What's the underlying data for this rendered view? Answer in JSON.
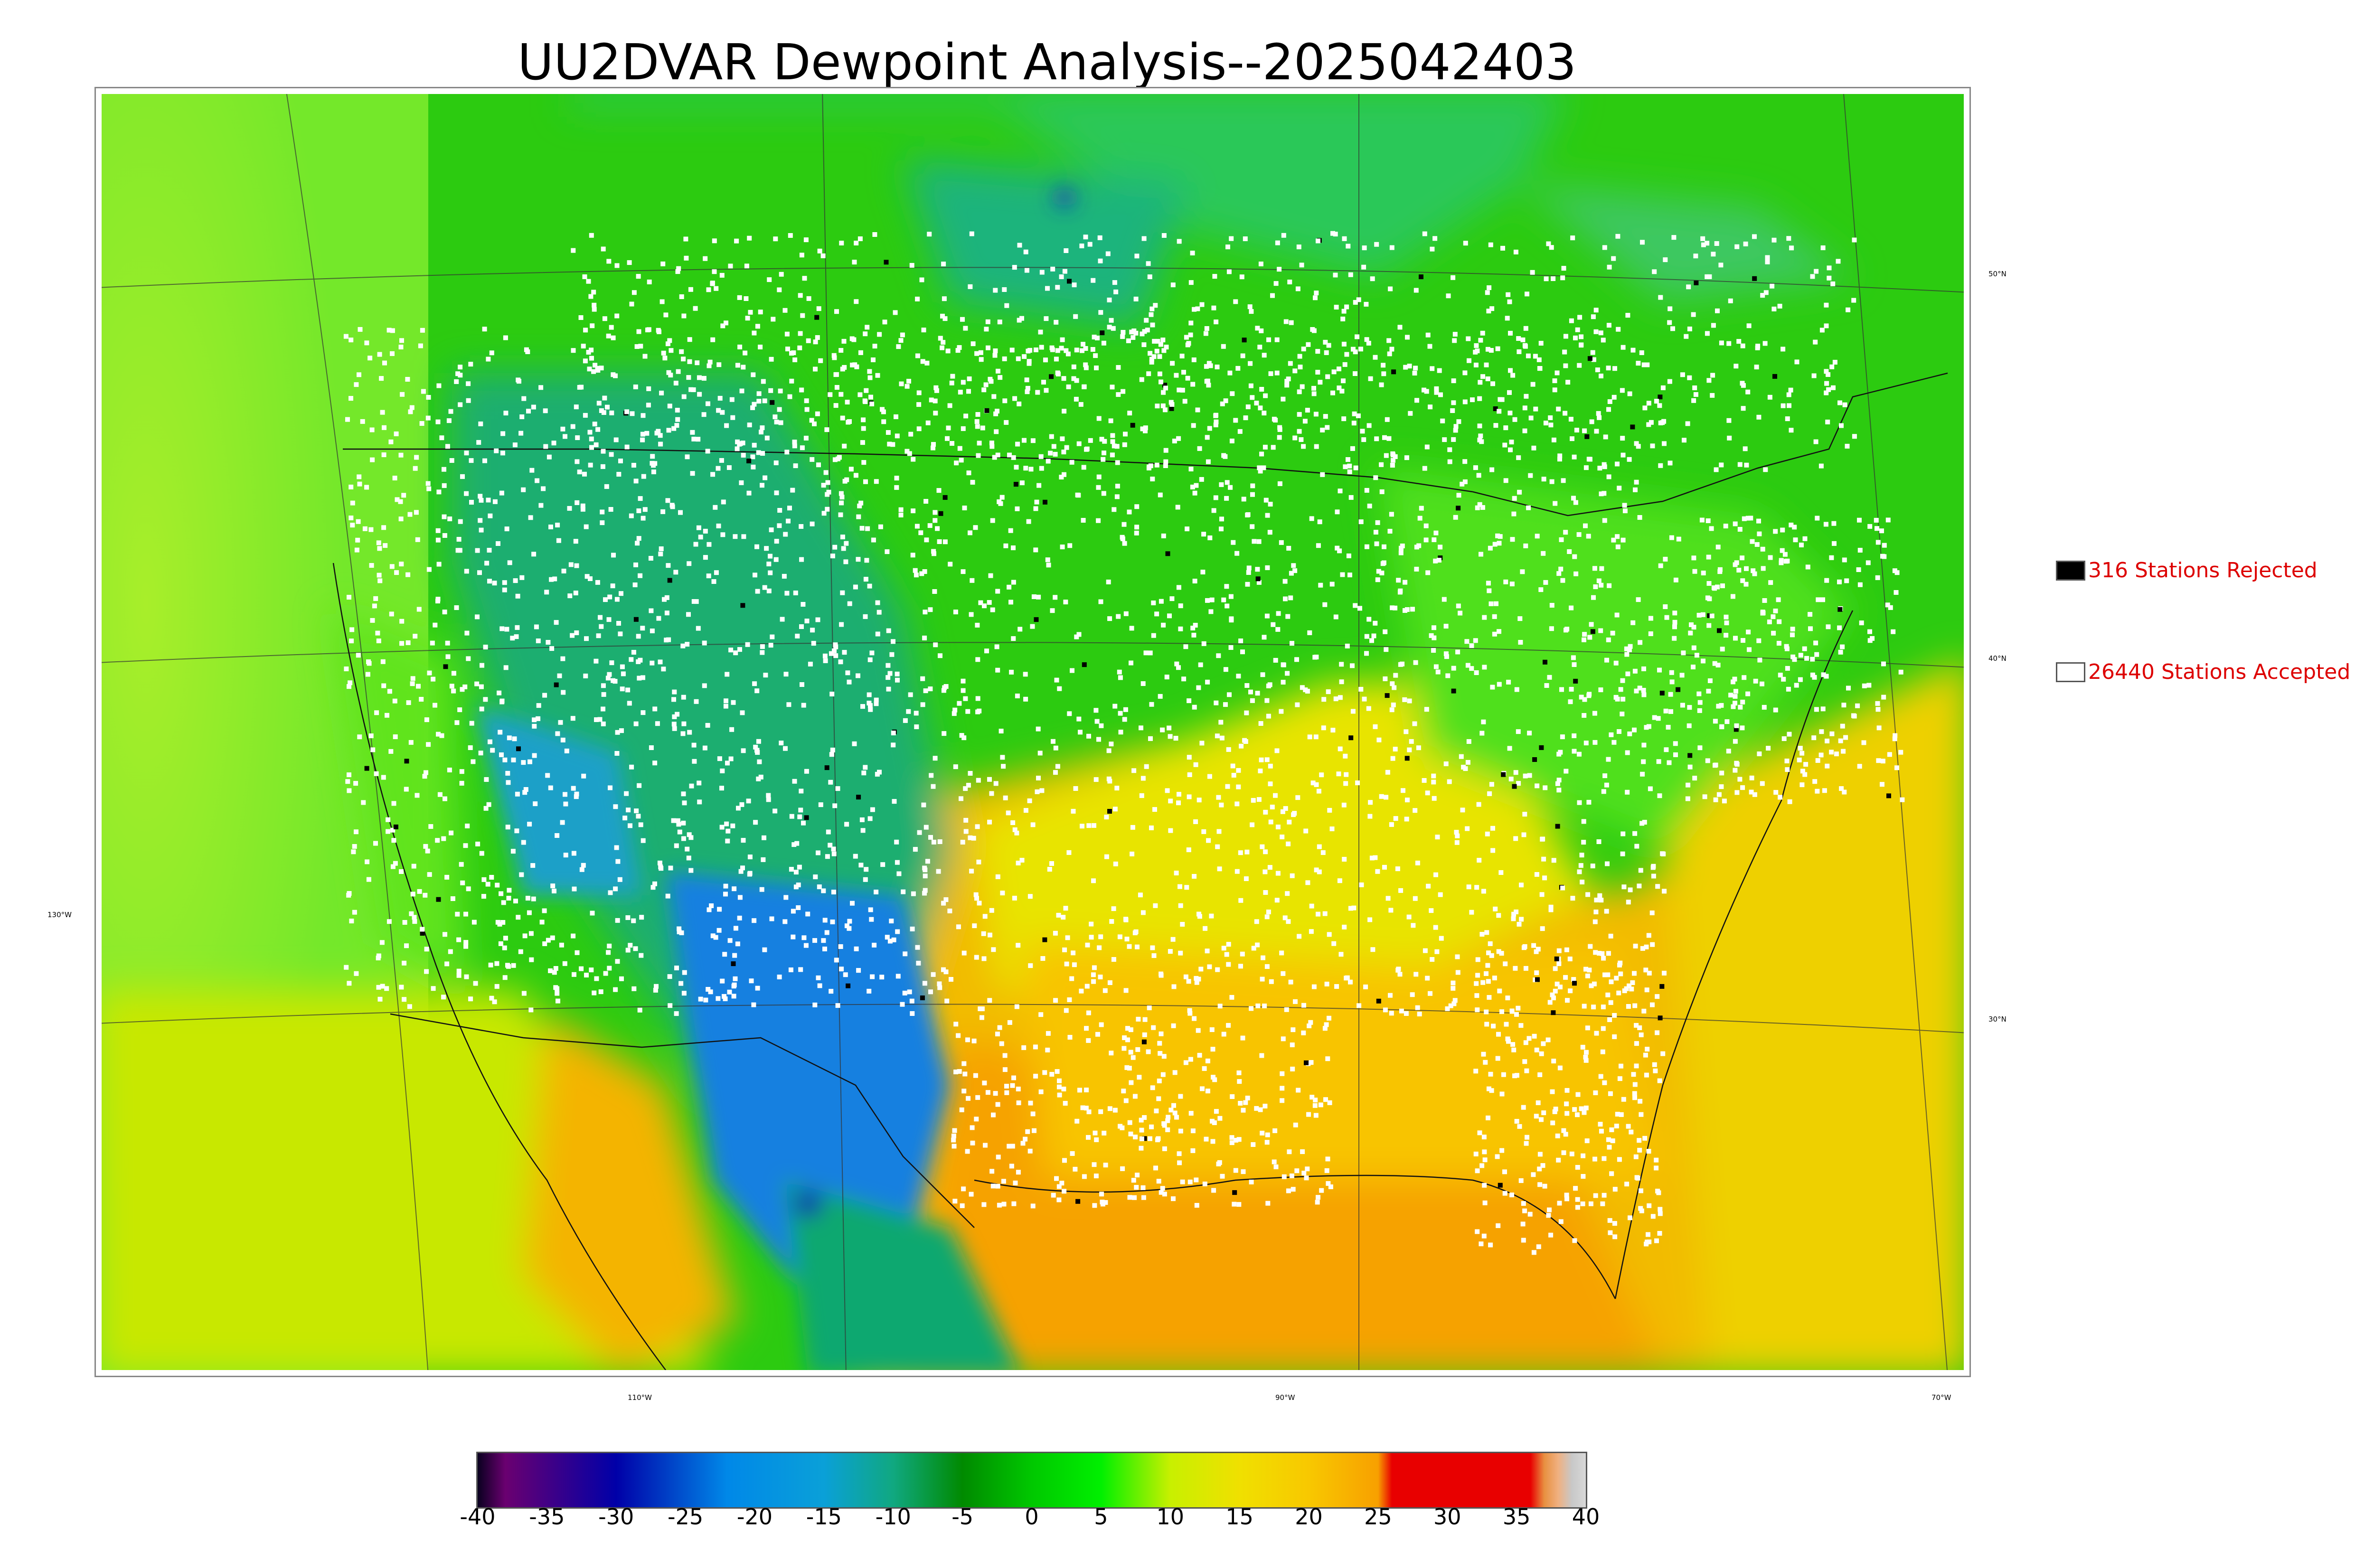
{
  "title": "UU2DVAR Dewpoint Analysis--2025042403",
  "map": {
    "latitude_labels": [
      "50°N",
      "40°N",
      "30°N"
    ],
    "longitude_labels": [
      "130°W",
      "110°W",
      "90°W",
      "70°W"
    ],
    "colors": {
      "ocean_west": "#86ec2c",
      "ocean_south": "#f7c400",
      "northern_green": "#22c400",
      "teal": "#19b06b",
      "blue": "#1a82e0",
      "deep_blue": "#0a2fb0",
      "yellow": "#e8e800",
      "orange": "#f6a800",
      "lime": "#5de81a",
      "station_accepted": "#ffffff",
      "station_rejected": "#000000"
    }
  },
  "legend": {
    "rejected": {
      "label": "316 Stations Rejected",
      "swatch_color": "#000000"
    },
    "accepted": {
      "label": "26440 Stations Accepted",
      "swatch_color": "#ffffff"
    },
    "text_color": "#dd0000"
  },
  "colorbar": {
    "ticks": [
      "-40",
      "-35",
      "-30",
      "-25",
      "-20",
      "-15",
      "-10",
      "-5",
      "0",
      "5",
      "10",
      "15",
      "20",
      "25",
      "30",
      "35",
      "40"
    ],
    "range": [
      -40,
      40
    ],
    "stops": [
      {
        "value": -40,
        "color": "#0a0020"
      },
      {
        "value": -38,
        "color": "#6a0070"
      },
      {
        "value": -30,
        "color": "#0000a8"
      },
      {
        "value": -22,
        "color": "#0088e8"
      },
      {
        "value": -15,
        "color": "#0aa0d8"
      },
      {
        "value": -10,
        "color": "#10a880"
      },
      {
        "value": -5,
        "color": "#008a00"
      },
      {
        "value": 0,
        "color": "#00c800"
      },
      {
        "value": 5,
        "color": "#00f000"
      },
      {
        "value": 10,
        "color": "#c8f000"
      },
      {
        "value": 15,
        "color": "#f0e000"
      },
      {
        "value": 20,
        "color": "#f8c800"
      },
      {
        "value": 25,
        "color": "#f8a000"
      },
      {
        "value": 26,
        "color": "#e80000"
      },
      {
        "value": 36,
        "color": "#e80000"
      },
      {
        "value": 37,
        "color": "#e89040"
      },
      {
        "value": 38,
        "color": "#f0b080"
      },
      {
        "value": 39,
        "color": "#c8c8c8"
      },
      {
        "value": 40,
        "color": "#d8d8d8"
      }
    ]
  }
}
